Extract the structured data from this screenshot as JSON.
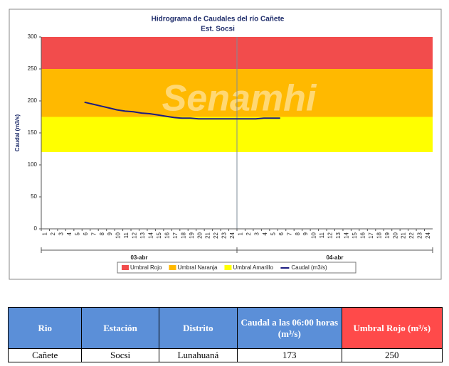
{
  "chart_data": {
    "type": "line",
    "title": "Hidrograma de Caudales  del río Cañete",
    "subtitle": "Est. Socsi",
    "watermark": "Senamhi",
    "ylabel": "Caudal  (m3/s)",
    "categories": [
      "1",
      "2",
      "3",
      "4",
      "5",
      "6",
      "7",
      "8",
      "9",
      "10",
      "11",
      "12",
      "13",
      "14",
      "15",
      "16",
      "17",
      "18",
      "19",
      "20",
      "21",
      "22",
      "23",
      "24",
      "1",
      "2",
      "3",
      "4",
      "5",
      "6",
      "7",
      "8",
      "9",
      "10",
      "11",
      "12",
      "13",
      "14",
      "15",
      "16",
      "17",
      "18",
      "19",
      "20",
      "21",
      "22",
      "23",
      "24"
    ],
    "day_labels": [
      "03-abr",
      "04-abr"
    ],
    "ylim": [
      0,
      300
    ],
    "yticks": [
      0,
      50,
      100,
      150,
      200,
      250,
      300
    ],
    "thresholds": [
      {
        "name": "Umbral Rojo",
        "color": "#f24c4c",
        "value": 250
      },
      {
        "name": "Umbral Naranja",
        "color": "#ffb900",
        "value": 175
      },
      {
        "name": "Umbral Amarillo",
        "color": "#ffff00",
        "value": 120
      }
    ],
    "series": [
      {
        "name": "Caudal (m3/s)",
        "color": "#1c1c80",
        "values": [
          null,
          null,
          null,
          null,
          null,
          198,
          195,
          192,
          189,
          186,
          184,
          183,
          181,
          180,
          178,
          176,
          174,
          173,
          173,
          172,
          172,
          172,
          172,
          172,
          172,
          172,
          172,
          173,
          173,
          173,
          null,
          null,
          null,
          null,
          null,
          null,
          null,
          null,
          null,
          null,
          null,
          null,
          null,
          null,
          null,
          null,
          null,
          null
        ]
      }
    ]
  },
  "table": {
    "headers": [
      "Rio",
      "Estación",
      "Distrito",
      "Caudal a las 06:00 horas (m³/s)",
      "Umbral Rojo (m³/s)"
    ],
    "rows": [
      [
        "Cañete",
        "Socsi",
        "Lunahuaná",
        173,
        250
      ]
    ]
  }
}
